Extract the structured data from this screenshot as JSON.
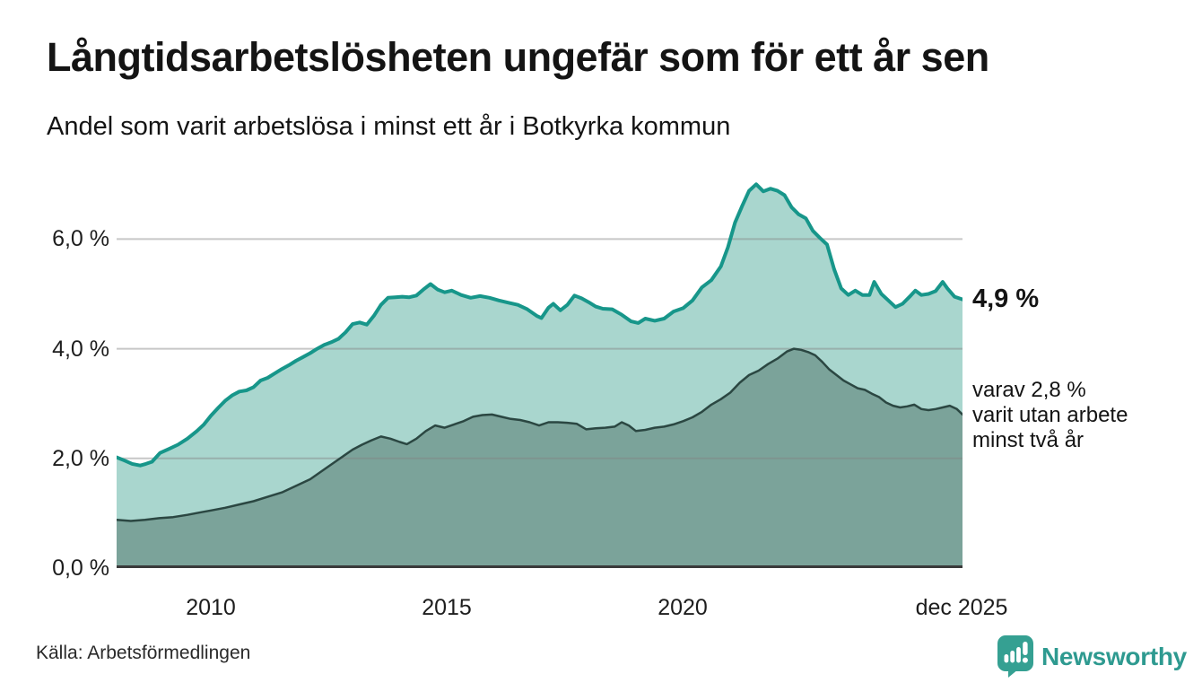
{
  "header": {
    "title": "Långtidsarbetslösheten ungefär som för ett år sen",
    "subtitle": "Andel som varit arbetslösa i minst ett år i Botkyrka kommun"
  },
  "chart_data": {
    "type": "area",
    "title": "Långtidsarbetslösheten ungefär som för ett år sen",
    "subtitle": "Andel som varit arbetslösa i minst ett år i Botkyrka kommun",
    "unit": "%",
    "x_domain": [
      2008.0,
      2025.92
    ],
    "ylim": [
      0,
      7.2
    ],
    "grid": "horizontal",
    "legend_position": "right-edge-labels",
    "y_ticks": [
      0,
      2,
      4,
      6
    ],
    "y_tick_labels": [
      "0,0 %",
      "2,0 %",
      "4,0 %",
      "6,0 %"
    ],
    "x_ticks": [
      2010,
      2015,
      2020,
      2025.92
    ],
    "x_tick_labels": [
      "2010",
      "2015",
      "2020",
      "dec 2025"
    ],
    "series": [
      {
        "name": "arbetslösa minst ett år (totalt)",
        "end_value": 4.9,
        "line_color": "#17968A",
        "fill_color": "#A9D6CE",
        "line_width": 4,
        "points": [
          [
            2008.0,
            2.02
          ],
          [
            2008.17,
            1.96
          ],
          [
            2008.33,
            1.9
          ],
          [
            2008.5,
            1.87
          ],
          [
            2008.62,
            1.9
          ],
          [
            2008.75,
            1.94
          ],
          [
            2008.92,
            2.1
          ],
          [
            2009.1,
            2.17
          ],
          [
            2009.3,
            2.25
          ],
          [
            2009.5,
            2.36
          ],
          [
            2009.7,
            2.5
          ],
          [
            2009.85,
            2.62
          ],
          [
            2010.0,
            2.78
          ],
          [
            2010.15,
            2.92
          ],
          [
            2010.3,
            3.05
          ],
          [
            2010.45,
            3.15
          ],
          [
            2010.6,
            3.22
          ],
          [
            2010.75,
            3.24
          ],
          [
            2010.9,
            3.3
          ],
          [
            2011.05,
            3.42
          ],
          [
            2011.2,
            3.47
          ],
          [
            2011.35,
            3.55
          ],
          [
            2011.5,
            3.63
          ],
          [
            2011.65,
            3.7
          ],
          [
            2011.8,
            3.78
          ],
          [
            2011.95,
            3.85
          ],
          [
            2012.1,
            3.92
          ],
          [
            2012.25,
            4.0
          ],
          [
            2012.4,
            4.07
          ],
          [
            2012.55,
            4.12
          ],
          [
            2012.7,
            4.18
          ],
          [
            2012.85,
            4.3
          ],
          [
            2013.0,
            4.45
          ],
          [
            2013.15,
            4.48
          ],
          [
            2013.3,
            4.44
          ],
          [
            2013.45,
            4.6
          ],
          [
            2013.6,
            4.8
          ],
          [
            2013.75,
            4.93
          ],
          [
            2013.9,
            4.94
          ],
          [
            2014.05,
            4.95
          ],
          [
            2014.2,
            4.94
          ],
          [
            2014.35,
            4.97
          ],
          [
            2014.5,
            5.08
          ],
          [
            2014.65,
            5.18
          ],
          [
            2014.8,
            5.08
          ],
          [
            2014.95,
            5.03
          ],
          [
            2015.1,
            5.06
          ],
          [
            2015.3,
            4.98
          ],
          [
            2015.5,
            4.93
          ],
          [
            2015.7,
            4.96
          ],
          [
            2015.9,
            4.93
          ],
          [
            2016.1,
            4.88
          ],
          [
            2016.3,
            4.84
          ],
          [
            2016.5,
            4.8
          ],
          [
            2016.7,
            4.72
          ],
          [
            2016.9,
            4.6
          ],
          [
            2017.0,
            4.56
          ],
          [
            2017.15,
            4.75
          ],
          [
            2017.25,
            4.82
          ],
          [
            2017.4,
            4.7
          ],
          [
            2017.55,
            4.8
          ],
          [
            2017.7,
            4.97
          ],
          [
            2017.85,
            4.92
          ],
          [
            2018.0,
            4.85
          ],
          [
            2018.15,
            4.77
          ],
          [
            2018.3,
            4.73
          ],
          [
            2018.5,
            4.72
          ],
          [
            2018.7,
            4.62
          ],
          [
            2018.9,
            4.5
          ],
          [
            2019.05,
            4.47
          ],
          [
            2019.2,
            4.55
          ],
          [
            2019.4,
            4.51
          ],
          [
            2019.6,
            4.55
          ],
          [
            2019.8,
            4.68
          ],
          [
            2020.0,
            4.74
          ],
          [
            2020.2,
            4.88
          ],
          [
            2020.4,
            5.12
          ],
          [
            2020.6,
            5.25
          ],
          [
            2020.8,
            5.5
          ],
          [
            2020.95,
            5.85
          ],
          [
            2021.1,
            6.3
          ],
          [
            2021.25,
            6.6
          ],
          [
            2021.4,
            6.88
          ],
          [
            2021.55,
            7.0
          ],
          [
            2021.7,
            6.87
          ],
          [
            2021.85,
            6.92
          ],
          [
            2022.0,
            6.88
          ],
          [
            2022.15,
            6.8
          ],
          [
            2022.3,
            6.58
          ],
          [
            2022.45,
            6.45
          ],
          [
            2022.6,
            6.38
          ],
          [
            2022.75,
            6.15
          ],
          [
            2022.9,
            6.02
          ],
          [
            2023.05,
            5.9
          ],
          [
            2023.2,
            5.45
          ],
          [
            2023.35,
            5.1
          ],
          [
            2023.5,
            4.98
          ],
          [
            2023.65,
            5.06
          ],
          [
            2023.8,
            4.98
          ],
          [
            2023.95,
            4.98
          ],
          [
            2024.05,
            5.22
          ],
          [
            2024.2,
            5.0
          ],
          [
            2024.35,
            4.88
          ],
          [
            2024.5,
            4.76
          ],
          [
            2024.65,
            4.82
          ],
          [
            2024.8,
            4.95
          ],
          [
            2024.92,
            5.06
          ],
          [
            2025.05,
            4.98
          ],
          [
            2025.2,
            5.0
          ],
          [
            2025.35,
            5.05
          ],
          [
            2025.5,
            5.22
          ],
          [
            2025.6,
            5.1
          ],
          [
            2025.75,
            4.95
          ],
          [
            2025.92,
            4.9
          ]
        ]
      },
      {
        "name": "varit utan arbete minst två år",
        "end_value": 2.8,
        "line_color": "#2B4742",
        "fill_color": "#7BA39A",
        "line_width": 2.5,
        "points": [
          [
            2008.0,
            0.88
          ],
          [
            2008.3,
            0.86
          ],
          [
            2008.6,
            0.88
          ],
          [
            2008.9,
            0.91
          ],
          [
            2009.2,
            0.93
          ],
          [
            2009.5,
            0.97
          ],
          [
            2009.8,
            1.02
          ],
          [
            2010.0,
            1.05
          ],
          [
            2010.3,
            1.1
          ],
          [
            2010.6,
            1.16
          ],
          [
            2010.9,
            1.22
          ],
          [
            2011.2,
            1.3
          ],
          [
            2011.5,
            1.38
          ],
          [
            2011.8,
            1.5
          ],
          [
            2012.1,
            1.62
          ],
          [
            2012.4,
            1.8
          ],
          [
            2012.7,
            1.98
          ],
          [
            2013.0,
            2.16
          ],
          [
            2013.2,
            2.25
          ],
          [
            2013.4,
            2.33
          ],
          [
            2013.6,
            2.4
          ],
          [
            2013.8,
            2.36
          ],
          [
            2014.0,
            2.3
          ],
          [
            2014.15,
            2.26
          ],
          [
            2014.35,
            2.36
          ],
          [
            2014.55,
            2.5
          ],
          [
            2014.75,
            2.6
          ],
          [
            2014.95,
            2.56
          ],
          [
            2015.15,
            2.62
          ],
          [
            2015.35,
            2.68
          ],
          [
            2015.55,
            2.76
          ],
          [
            2015.75,
            2.79
          ],
          [
            2015.95,
            2.8
          ],
          [
            2016.15,
            2.76
          ],
          [
            2016.35,
            2.72
          ],
          [
            2016.55,
            2.7
          ],
          [
            2016.75,
            2.66
          ],
          [
            2016.95,
            2.6
          ],
          [
            2017.15,
            2.66
          ],
          [
            2017.35,
            2.66
          ],
          [
            2017.55,
            2.65
          ],
          [
            2017.75,
            2.63
          ],
          [
            2017.95,
            2.53
          ],
          [
            2018.15,
            2.55
          ],
          [
            2018.35,
            2.56
          ],
          [
            2018.55,
            2.58
          ],
          [
            2018.7,
            2.66
          ],
          [
            2018.85,
            2.6
          ],
          [
            2019.0,
            2.5
          ],
          [
            2019.2,
            2.52
          ],
          [
            2019.4,
            2.56
          ],
          [
            2019.6,
            2.58
          ],
          [
            2019.8,
            2.62
          ],
          [
            2020.0,
            2.68
          ],
          [
            2020.2,
            2.75
          ],
          [
            2020.4,
            2.85
          ],
          [
            2020.6,
            2.98
          ],
          [
            2020.8,
            3.08
          ],
          [
            2021.0,
            3.2
          ],
          [
            2021.2,
            3.38
          ],
          [
            2021.4,
            3.52
          ],
          [
            2021.6,
            3.6
          ],
          [
            2021.8,
            3.72
          ],
          [
            2022.0,
            3.82
          ],
          [
            2022.2,
            3.95
          ],
          [
            2022.35,
            4.0
          ],
          [
            2022.5,
            3.98
          ],
          [
            2022.65,
            3.94
          ],
          [
            2022.8,
            3.88
          ],
          [
            2022.95,
            3.76
          ],
          [
            2023.1,
            3.62
          ],
          [
            2023.25,
            3.52
          ],
          [
            2023.4,
            3.42
          ],
          [
            2023.55,
            3.35
          ],
          [
            2023.7,
            3.28
          ],
          [
            2023.85,
            3.25
          ],
          [
            2024.0,
            3.18
          ],
          [
            2024.15,
            3.12
          ],
          [
            2024.3,
            3.02
          ],
          [
            2024.45,
            2.96
          ],
          [
            2024.6,
            2.93
          ],
          [
            2024.75,
            2.95
          ],
          [
            2024.9,
            2.98
          ],
          [
            2025.05,
            2.9
          ],
          [
            2025.2,
            2.88
          ],
          [
            2025.35,
            2.9
          ],
          [
            2025.5,
            2.93
          ],
          [
            2025.65,
            2.96
          ],
          [
            2025.8,
            2.9
          ],
          [
            2025.92,
            2.8
          ]
        ]
      }
    ],
    "annotations": {
      "total_end_label": "4,9 %",
      "two_plus_line1": "varav 2,8 %",
      "two_plus_line2": "varit utan arbete",
      "two_plus_line3": "minst två år"
    }
  },
  "axis": {
    "y0": "0,0 %",
    "y2": "2,0 %",
    "y4": "4,0 %",
    "y6": "6,0 %",
    "x0": "2010",
    "x1": "2015",
    "x2": "2020",
    "x3": "dec 2025"
  },
  "footer": {
    "source": "Källa: Arbetsförmedlingen",
    "brand": "Newsworthy"
  },
  "colors": {
    "accent_teal": "#17968A",
    "light_fill": "#A9D6CE",
    "dark_line": "#2B4742",
    "dark_fill": "#7BA39A",
    "gridline": "#D4D4D4",
    "baseline": "#3A3A3A",
    "brand_teal": "#2E9A90",
    "text": "#141414"
  }
}
